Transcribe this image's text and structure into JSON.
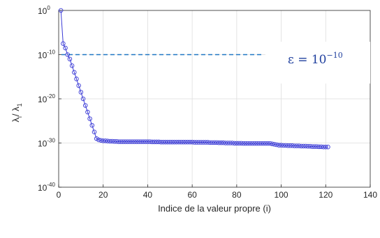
{
  "chart_data": {
    "type": "scatter",
    "xlabel": "Indice de la valeur propre (i)",
    "ylabel": {
      "main": "λ",
      "sub_i": "i",
      "sep": "/ ",
      "main2": "λ",
      "sub_1": "1"
    },
    "xlim": [
      0,
      140
    ],
    "ylim_exponent": [
      -40,
      0
    ],
    "yscale": "log",
    "grid": true,
    "x_ticks": [
      "0",
      "20",
      "40",
      "60",
      "80",
      "100",
      "120",
      "140"
    ],
    "y_ticks": [
      {
        "base": "10",
        "exp": "0"
      },
      {
        "base": "10",
        "exp": "-10"
      },
      {
        "base": "10",
        "exp": "-20"
      },
      {
        "base": "10",
        "exp": "-30"
      },
      {
        "base": "10",
        "exp": "-40"
      }
    ],
    "series": [
      {
        "x": [
          1,
          2,
          3,
          4,
          5,
          6,
          7,
          8,
          9,
          10,
          11,
          12,
          13,
          14,
          15,
          16,
          17,
          18,
          19,
          20,
          21,
          22,
          23,
          24,
          25,
          26,
          27,
          28,
          29,
          30,
          31,
          32,
          33,
          34,
          35,
          36,
          37,
          38,
          39,
          40,
          41,
          42,
          43,
          44,
          45,
          46,
          47,
          48,
          49,
          50,
          51,
          52,
          53,
          54,
          55,
          56,
          57,
          58,
          59,
          60,
          61,
          62,
          63,
          64,
          65,
          66,
          67,
          68,
          69,
          70,
          71,
          72,
          73,
          74,
          75,
          76,
          77,
          78,
          79,
          80,
          81,
          82,
          83,
          84,
          85,
          86,
          87,
          88,
          89,
          90,
          91,
          92,
          93,
          94,
          95,
          96,
          97,
          98,
          99,
          100,
          101,
          102,
          103,
          104,
          105,
          106,
          107,
          108,
          109,
          110,
          111,
          112,
          113,
          114,
          115,
          116,
          117,
          118,
          119,
          120,
          121
        ],
        "log10_y": [
          0,
          -7.5,
          -8.5,
          -10,
          -11,
          -12.5,
          -14,
          -15.5,
          -17,
          -18.5,
          -20,
          -21.5,
          -23,
          -24.5,
          -26,
          -27.5,
          -29,
          -29.3,
          -29.4,
          -29.5,
          -29.5,
          -29.55,
          -29.6,
          -29.6,
          -29.65,
          -29.65,
          -29.7,
          -29.7,
          -29.7,
          -29.7,
          -29.7,
          -29.7,
          -29.7,
          -29.7,
          -29.7,
          -29.7,
          -29.7,
          -29.7,
          -29.7,
          -29.7,
          -29.7,
          -29.75,
          -29.75,
          -29.75,
          -29.75,
          -29.8,
          -29.8,
          -29.8,
          -29.8,
          -29.8,
          -29.8,
          -29.8,
          -29.8,
          -29.8,
          -29.8,
          -29.8,
          -29.8,
          -29.8,
          -29.8,
          -29.8,
          -29.85,
          -29.85,
          -29.85,
          -29.85,
          -29.85,
          -29.85,
          -29.85,
          -29.9,
          -29.9,
          -29.9,
          -29.9,
          -29.95,
          -29.95,
          -29.95,
          -30,
          -30,
          -30,
          -30,
          -30.05,
          -30.05,
          -30.05,
          -30.05,
          -30.1,
          -30.1,
          -30.1,
          -30.1,
          -30.1,
          -30.1,
          -30.1,
          -30.1,
          -30.1,
          -30.1,
          -30.1,
          -30.1,
          -30.1,
          -30.2,
          -30.3,
          -30.4,
          -30.5,
          -30.5,
          -30.55,
          -30.55,
          -30.6,
          -30.6,
          -30.6,
          -30.65,
          -30.65,
          -30.65,
          -30.7,
          -30.7,
          -30.7,
          -30.75,
          -30.75,
          -30.8,
          -30.8,
          -30.8,
          -30.85,
          -30.85,
          -30.9,
          -30.9,
          -30.9
        ],
        "color": "#3a3ad6",
        "marker": "circle"
      }
    ],
    "threshold": {
      "log10_y": -10,
      "x_range": [
        0,
        92
      ],
      "color": "#1f77c4",
      "style": "dashed",
      "label_lhs": "ε = 10",
      "label_exp": "−10"
    }
  }
}
